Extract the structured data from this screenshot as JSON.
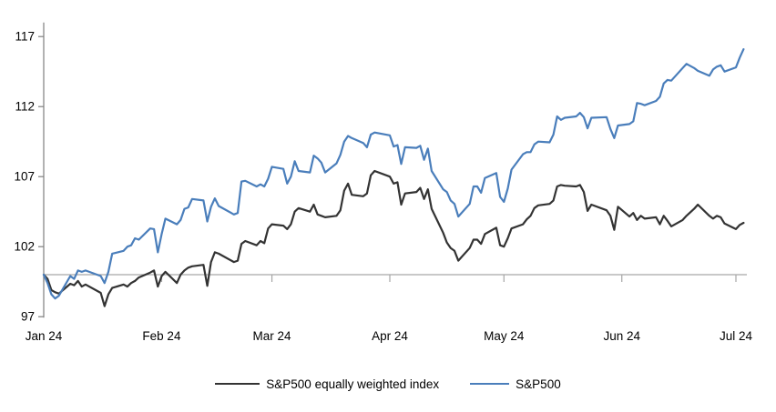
{
  "chart_data": {
    "type": "line",
    "title": "",
    "grid": false,
    "legend_position": "bottom",
    "baseline_value": 100,
    "y_axis": {
      "ticks": [
        97,
        102,
        107,
        112,
        117
      ],
      "min": 97,
      "max": 118
    },
    "x_axis": {
      "tick_labels": [
        "Jan 24",
        "Feb 24",
        "Mar 24",
        "Apr 24",
        "May 24",
        "Jun 24",
        "Jul 24"
      ],
      "tick_dates": [
        "2024-01-01",
        "2024-02-01",
        "2024-03-01",
        "2024-04-01",
        "2024-05-01",
        "2024-06-01",
        "2024-07-01"
      ]
    },
    "dates": [
      "2024-01-01",
      "2024-01-02",
      "2024-01-03",
      "2024-01-04",
      "2024-01-05",
      "2024-01-08",
      "2024-01-09",
      "2024-01-10",
      "2024-01-11",
      "2024-01-12",
      "2024-01-16",
      "2024-01-17",
      "2024-01-18",
      "2024-01-19",
      "2024-01-22",
      "2024-01-23",
      "2024-01-24",
      "2024-01-25",
      "2024-01-26",
      "2024-01-29",
      "2024-01-30",
      "2024-01-31",
      "2024-02-01",
      "2024-02-02",
      "2024-02-05",
      "2024-02-06",
      "2024-02-07",
      "2024-02-08",
      "2024-02-09",
      "2024-02-12",
      "2024-02-13",
      "2024-02-14",
      "2024-02-15",
      "2024-02-16",
      "2024-02-20",
      "2024-02-21",
      "2024-02-22",
      "2024-02-23",
      "2024-02-26",
      "2024-02-27",
      "2024-02-28",
      "2024-02-29",
      "2024-03-01",
      "2024-03-04",
      "2024-03-05",
      "2024-03-06",
      "2024-03-07",
      "2024-03-08",
      "2024-03-11",
      "2024-03-12",
      "2024-03-13",
      "2024-03-14",
      "2024-03-15",
      "2024-03-18",
      "2024-03-19",
      "2024-03-20",
      "2024-03-21",
      "2024-03-22",
      "2024-03-25",
      "2024-03-26",
      "2024-03-27",
      "2024-03-28",
      "2024-04-01",
      "2024-04-02",
      "2024-04-03",
      "2024-04-04",
      "2024-04-05",
      "2024-04-08",
      "2024-04-09",
      "2024-04-10",
      "2024-04-11",
      "2024-04-12",
      "2024-04-15",
      "2024-04-16",
      "2024-04-17",
      "2024-04-18",
      "2024-04-19",
      "2024-04-22",
      "2024-04-23",
      "2024-04-24",
      "2024-04-25",
      "2024-04-26",
      "2024-04-29",
      "2024-04-30",
      "2024-05-01",
      "2024-05-02",
      "2024-05-03",
      "2024-05-06",
      "2024-05-07",
      "2024-05-08",
      "2024-05-09",
      "2024-05-10",
      "2024-05-13",
      "2024-05-14",
      "2024-05-15",
      "2024-05-16",
      "2024-05-17",
      "2024-05-20",
      "2024-05-21",
      "2024-05-22",
      "2024-05-23",
      "2024-05-24",
      "2024-05-28",
      "2024-05-29",
      "2024-05-30",
      "2024-05-31",
      "2024-06-03",
      "2024-06-04",
      "2024-06-05",
      "2024-06-06",
      "2024-06-07",
      "2024-06-10",
      "2024-06-11",
      "2024-06-12",
      "2024-06-13",
      "2024-06-14",
      "2024-06-17",
      "2024-06-18",
      "2024-06-20",
      "2024-06-21",
      "2024-06-24",
      "2024-06-25",
      "2024-06-26",
      "2024-06-27",
      "2024-06-28",
      "2024-07-01",
      "2024-07-02",
      "2024-07-03"
    ],
    "series": [
      {
        "name": "S&P500 equally weighted index",
        "color": "#333333",
        "values": [
          100,
          99.7,
          98.9,
          98.75,
          98.65,
          99.35,
          99.25,
          99.55,
          99.15,
          99.3,
          98.7,
          97.75,
          98.6,
          99.05,
          99.3,
          99.15,
          99.4,
          99.55,
          99.8,
          100.15,
          100.3,
          99.15,
          99.9,
          100.2,
          99.4,
          100,
          100.3,
          100.5,
          100.6,
          100.7,
          99.2,
          100.9,
          101.6,
          101.5,
          100.9,
          101,
          102.2,
          102.4,
          102.1,
          102.4,
          102.25,
          103.3,
          103.6,
          103.5,
          103.25,
          103.6,
          104.5,
          104.75,
          104.5,
          105,
          104.3,
          104.2,
          104.1,
          104.2,
          104.6,
          106,
          106.5,
          105.7,
          105.6,
          105.8,
          107.1,
          107.4,
          107,
          106.5,
          106.6,
          105,
          105.8,
          105.9,
          106.2,
          105.4,
          106.1,
          104.7,
          103,
          102.3,
          101.9,
          101.7,
          101,
          101.9,
          102.5,
          102.5,
          102.2,
          102.9,
          103.35,
          102.1,
          102,
          102.6,
          103.3,
          103.6,
          103.95,
          104.2,
          104.75,
          104.95,
          105.05,
          105.3,
          106.3,
          106.4,
          106.35,
          106.3,
          106.4,
          105.9,
          104.55,
          105,
          104.6,
          104.2,
          103.2,
          104.85,
          104.15,
          104.4,
          103.9,
          104.2,
          104,
          104.1,
          103.6,
          104.2,
          103.85,
          103.45,
          103.9,
          104.2,
          104.7,
          105,
          104.2,
          104,
          104.2,
          104.1,
          103.65,
          103.25,
          103.55,
          103.7
        ]
      },
      {
        "name": "S&P500",
        "color": "#4A7EBB",
        "values": [
          100,
          99.4,
          98.6,
          98.3,
          98.5,
          99.9,
          99.7,
          100.3,
          100.2,
          100.3,
          99.9,
          99.4,
          100.2,
          101.5,
          101.7,
          102,
          102.1,
          102.6,
          102.5,
          103.3,
          103.25,
          101.6,
          102.9,
          104,
          103.6,
          103.9,
          104.7,
          104.8,
          105.4,
          105.3,
          103.8,
          104.85,
          105.45,
          104.9,
          104.3,
          104.4,
          106.65,
          106.7,
          106.3,
          106.45,
          106.3,
          106.85,
          107.7,
          107.55,
          106.5,
          107,
          108.1,
          107.4,
          107.3,
          108.5,
          108.3,
          108,
          107.3,
          107.95,
          108.55,
          109.5,
          109.9,
          109.75,
          109.4,
          109.1,
          110,
          110.15,
          109.95,
          109.15,
          109.25,
          107.9,
          109.1,
          109.05,
          109.2,
          108.2,
          109,
          107.4,
          106.1,
          105.9,
          105.3,
          105.05,
          104.15,
          105.05,
          106.3,
          106.3,
          105.85,
          106.9,
          107.25,
          105.55,
          105.2,
          106.15,
          107.5,
          108.6,
          108.75,
          108.75,
          109.3,
          109.5,
          109.45,
          110,
          111.3,
          111.05,
          111.2,
          111.3,
          111.55,
          111.25,
          110.45,
          111.2,
          111.25,
          110.4,
          109.75,
          110.65,
          110.75,
          110.95,
          112.25,
          112.2,
          112.1,
          112.4,
          112.7,
          113.65,
          113.9,
          113.85,
          114.75,
          115.05,
          114.75,
          114.55,
          114.2,
          114.65,
          114.85,
          114.95,
          114.5,
          114.8,
          115.5,
          116.1
        ]
      }
    ]
  },
  "colors": {
    "axis": "#7f7f7f",
    "baseline": "#a6a6a6",
    "tick_text": "#000000",
    "background": "#ffffff"
  }
}
